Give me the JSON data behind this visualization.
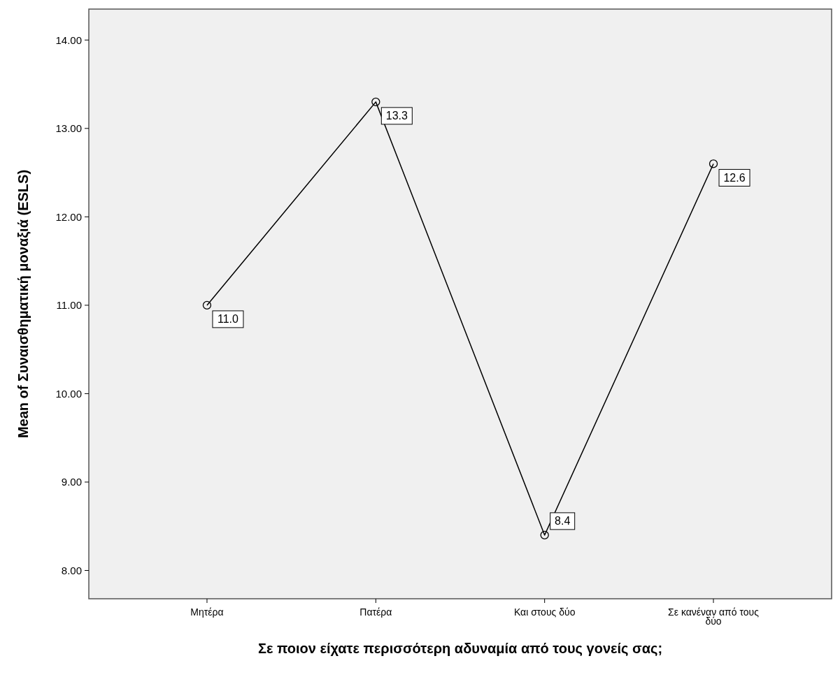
{
  "chart_data": {
    "type": "line",
    "xlabel": "Σε ποιον είχατε περισσότερη αδυναμία από τους γονείς σας;",
    "ylabel": "Mean of Συναισθηματική μοναξιά (ESLS)",
    "categories": [
      "Μητέρα",
      "Πατέρα",
      "Και στους δύο",
      "Σε κανέναν από τους δύο"
    ],
    "values": [
      11.0,
      13.3,
      8.4,
      12.6
    ],
    "value_labels": [
      "11.0",
      "13.3",
      "8.4",
      "12.6"
    ],
    "color": "#000000",
    "marker": "circle",
    "ylim": [
      7.68,
      14.35
    ],
    "yticks": [
      {
        "value": 8,
        "label": "8.00"
      },
      {
        "value": 9,
        "label": "9.00"
      },
      {
        "value": 10,
        "label": "10.00"
      },
      {
        "value": 11,
        "label": "11.00"
      },
      {
        "value": 12,
        "label": "12.00"
      },
      {
        "value": 13,
        "label": "13.00"
      },
      {
        "value": 14,
        "label": "14.00"
      }
    ],
    "grid": false
  }
}
